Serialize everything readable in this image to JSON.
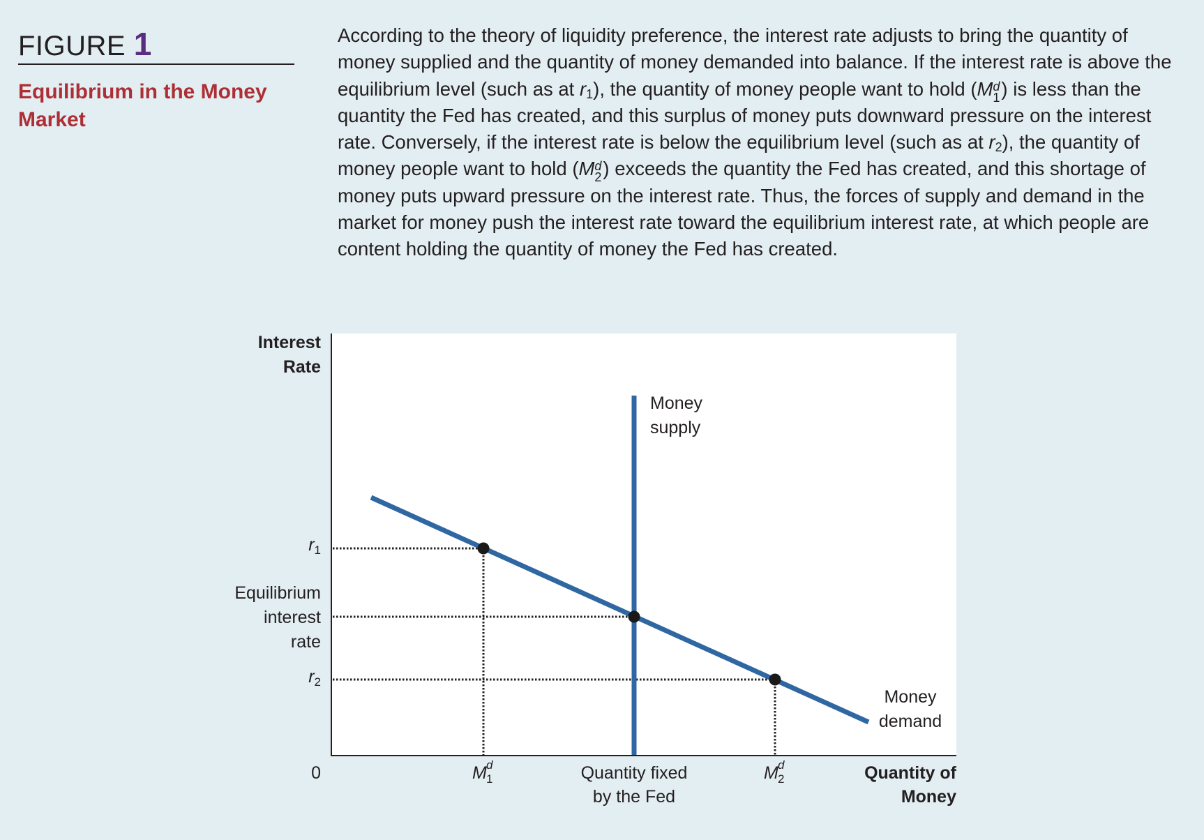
{
  "figure": {
    "label": "FIGURE",
    "number": "1",
    "title": "Equilibrium in the Money Market"
  },
  "caption": {
    "p1": "According to the theory of liquidity preference, the interest rate adjusts to bring the quantity of money supplied and the quantity of money demanded into balance. If the interest rate is above the equilibrium level (such as at ",
    "r1": "r",
    "r1_sub": "1",
    "p2": "), the quantity of money people want to hold (",
    "m1": "M",
    "m1_sup": "d",
    "m1_sub": "1",
    "p3": ") is less than the quantity the Fed has created, and this surplus of money puts downward pressure on the interest rate. Conversely, if the interest rate is below the equilibrium level (such as at ",
    "r2": "r",
    "r2_sub": "2",
    "p4": "), the quantity of money people want to hold (",
    "m2": "M",
    "m2_sup": "d",
    "m2_sub": "2",
    "p5": ") exceeds the quantity the Fed has created, and this shortage of money puts upward pressure on the interest rate. Thus, the forces of supply and demand in the market for money push the interest rate toward the equilibrium interest rate, at which people are content holding the quantity of money the Fed has created."
  },
  "diagram": {
    "y_axis_label": [
      "Interest",
      "Rate"
    ],
    "x_axis_label": [
      "Quantity of",
      "Money"
    ],
    "origin_label": "0",
    "y_ticks": {
      "r1": {
        "main": "r",
        "sub": "1"
      },
      "equilibrium": [
        "Equilibrium",
        "interest",
        "rate"
      ],
      "r2": {
        "main": "r",
        "sub": "2"
      }
    },
    "x_ticks": {
      "m1": {
        "main": "M",
        "sup": "d",
        "sub": "1"
      },
      "fixed": [
        "Quantity fixed",
        "by the Fed"
      ],
      "m2": {
        "main": "M",
        "sup": "d",
        "sub": "2"
      }
    },
    "supply_label": [
      "Money",
      "supply"
    ],
    "demand_label": [
      "Money",
      "demand"
    ],
    "curve_color": "#2f67a2"
  }
}
